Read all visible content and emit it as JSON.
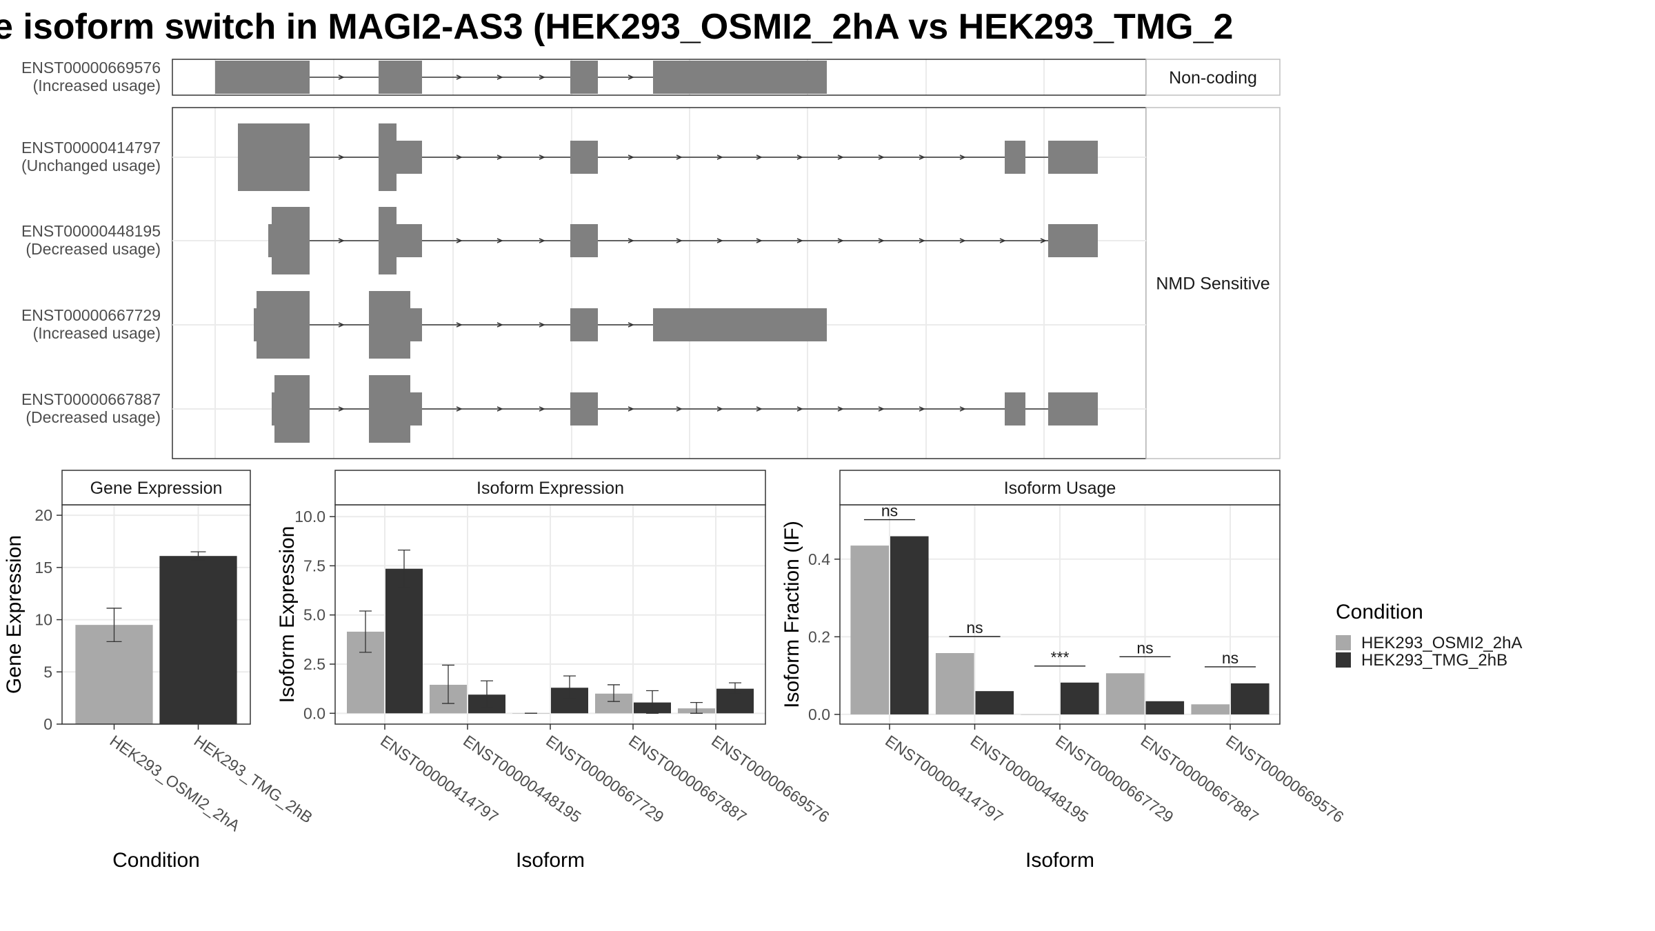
{
  "title": "e isoform switch in MAGI2-AS3 (HEK293_OSMI2_2hA vs HEK293_TMG_2",
  "colors": {
    "cond1": "#a9a9a9",
    "cond2": "#333333",
    "exon": "#808080",
    "grid": "#ebebeb",
    "strip": "#ffffff"
  },
  "structure": {
    "groups": [
      {
        "label": "Non-coding",
        "isoforms": [
          "ENST00000669576"
        ]
      },
      {
        "label": "NMD Sensitive",
        "isoforms": [
          "ENST00000414797",
          "ENST00000448195",
          "ENST00000667729",
          "ENST00000667887"
        ]
      }
    ],
    "isoforms": [
      {
        "id": "ENST00000669576",
        "usage": "(Increased usage)"
      },
      {
        "id": "ENST00000414797",
        "usage": "(Unchanged usage)"
      },
      {
        "id": "ENST00000448195",
        "usage": "(Decreased usage)"
      },
      {
        "id": "ENST00000667729",
        "usage": "(Increased usage)"
      },
      {
        "id": "ENST00000667887",
        "usage": "(Decreased usage)"
      }
    ]
  },
  "chart_data": [
    {
      "type": "bar",
      "title": "Gene Expression",
      "xlabel": "Condition",
      "ylabel": "Gene Expression",
      "categories": [
        "HEK293_OSMI2_2hA",
        "HEK293_TMG_2hB"
      ],
      "values": [
        9.5,
        16.1
      ],
      "error_low": [
        7.9,
        15.7
      ],
      "error_high": [
        11.1,
        16.5
      ],
      "ylim": [
        0,
        21
      ],
      "yticks": [
        "0",
        "5",
        "10",
        "15",
        "20"
      ]
    },
    {
      "type": "bar",
      "title": "Isoform Expression",
      "xlabel": "Isoform",
      "ylabel": "Isoform Expression",
      "categories": [
        "ENST00000414797",
        "ENST00000448195",
        "ENST00000667729",
        "ENST00000667887",
        "ENST00000669576"
      ],
      "series": [
        {
          "name": "HEK293_OSMI2_2hA",
          "values": [
            4.15,
            1.45,
            0.0,
            1.0,
            0.25
          ],
          "error_low": [
            3.1,
            0.5,
            0.0,
            0.6,
            0.0
          ],
          "error_high": [
            5.2,
            2.45,
            0.0,
            1.45,
            0.55
          ]
        },
        {
          "name": "HEK293_TMG_2hB",
          "values": [
            7.35,
            0.95,
            1.3,
            0.55,
            1.25
          ],
          "error_low": [
            6.4,
            0.3,
            0.75,
            0.0,
            1.0
          ],
          "error_high": [
            8.3,
            1.65,
            1.9,
            1.15,
            1.55
          ]
        }
      ],
      "ylim": [
        -0.55,
        10.6
      ],
      "yticks": [
        "0.0",
        "2.5",
        "5.0",
        "7.5",
        "10.0"
      ]
    },
    {
      "type": "bar",
      "title": "Isoform Usage",
      "xlabel": "Isoform",
      "ylabel": "Isoform Fraction (IF)",
      "categories": [
        "ENST00000414797",
        "ENST00000448195",
        "ENST00000667729",
        "ENST00000667887",
        "ENST00000669576"
      ],
      "series": [
        {
          "name": "HEK293_OSMI2_2hA",
          "values": [
            0.435,
            0.158,
            0.0,
            0.106,
            0.026
          ]
        },
        {
          "name": "HEK293_TMG_2hB",
          "values": [
            0.459,
            0.06,
            0.082,
            0.034,
            0.08
          ]
        }
      ],
      "significance": [
        "ns",
        "ns",
        "***",
        "ns",
        "ns"
      ],
      "ylim": [
        -0.025,
        0.54
      ],
      "yticks": [
        "0.0",
        "0.2",
        "0.4"
      ]
    }
  ],
  "legend": {
    "title": "Condition",
    "items": [
      "HEK293_OSMI2_2hA",
      "HEK293_TMG_2hB"
    ]
  }
}
